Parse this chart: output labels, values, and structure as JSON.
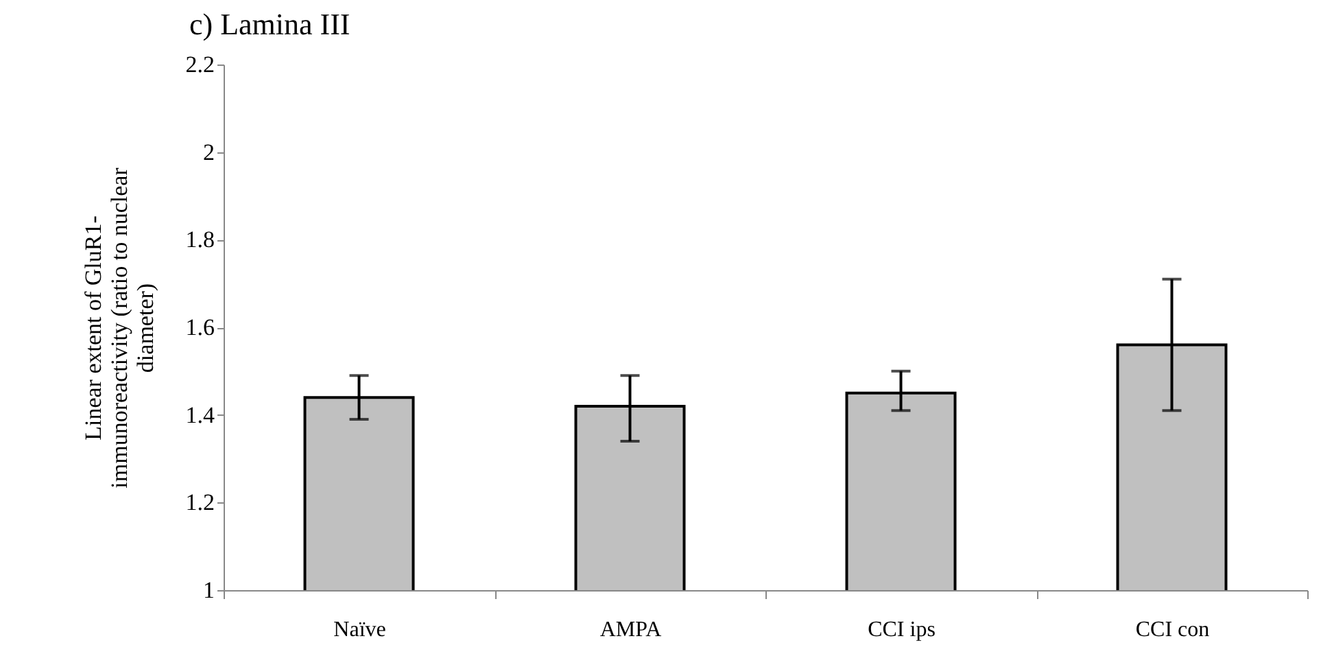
{
  "chart_data": {
    "type": "bar",
    "title": "c) Lamina III",
    "ylabel": "Linear extent of GluR1-\nimmunoreactivity (ratio to nuclear\ndiameter)",
    "categories": [
      "Naïve",
      "AMPA",
      "CCI ips",
      "CCI con"
    ],
    "values": [
      1.44,
      1.42,
      1.45,
      1.56
    ],
    "errors": [
      [
        1.39,
        1.49
      ],
      [
        1.34,
        1.49
      ],
      [
        1.41,
        1.5
      ],
      [
        1.41,
        1.71
      ]
    ],
    "color": "#c0c0c0",
    "ylim": [
      1,
      2.2
    ],
    "yticks": [
      1,
      1.2,
      1.4,
      1.6,
      1.8,
      2,
      2.2
    ],
    "grid": false
  }
}
